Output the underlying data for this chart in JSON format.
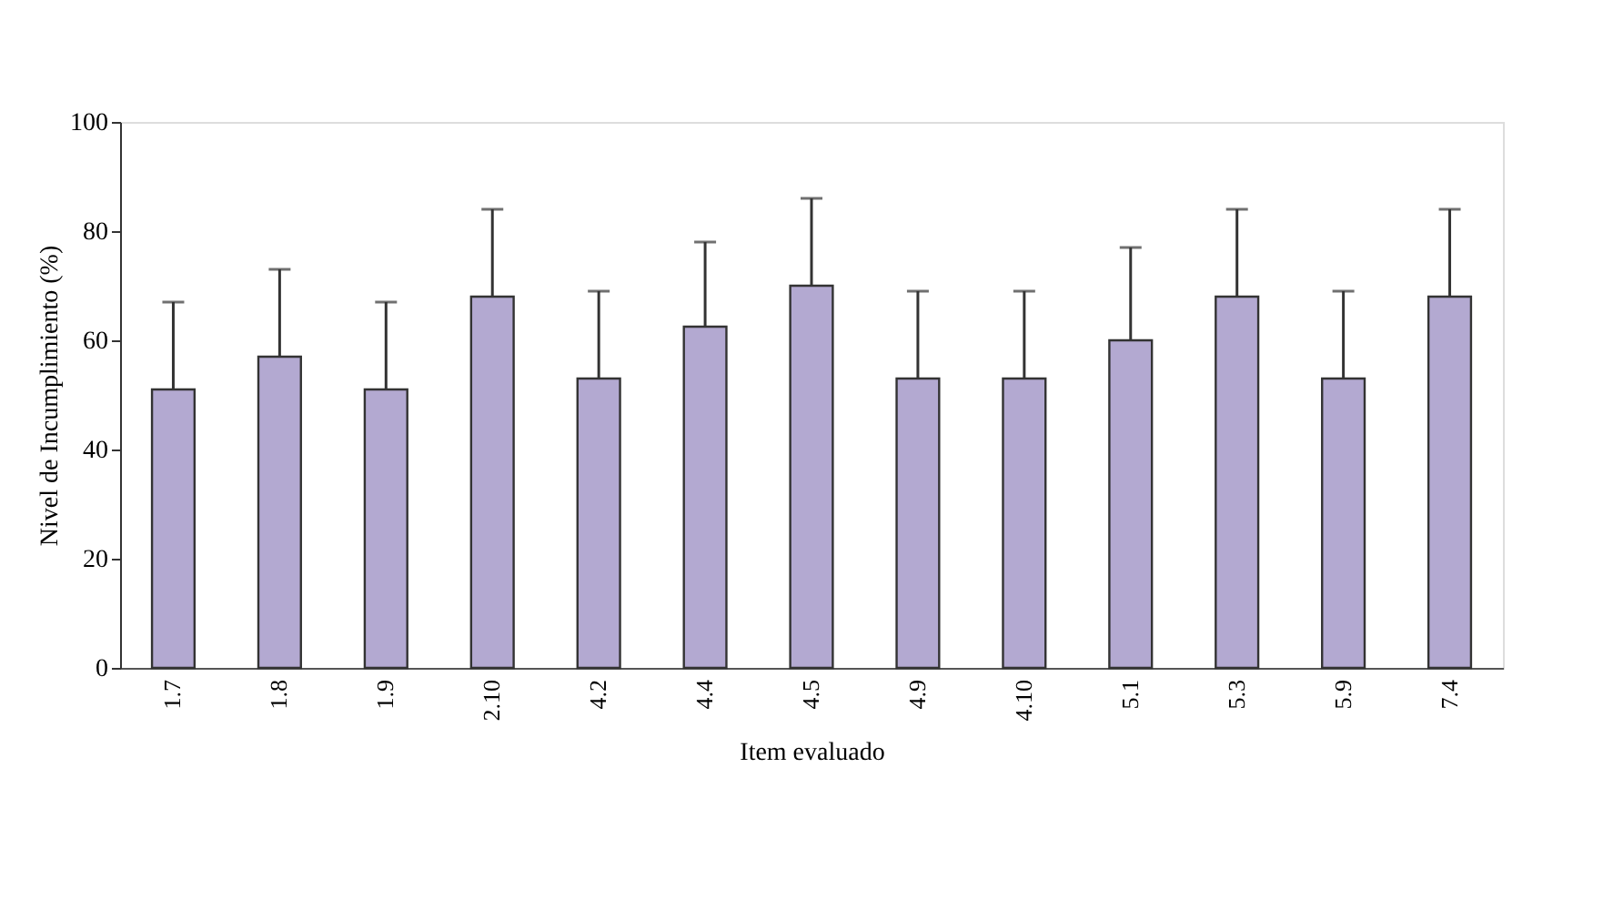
{
  "chart_data": {
    "type": "bar",
    "xlabel": "Item evaluado",
    "ylabel": "Nivel de Incumplimiento (%)",
    "categories": [
      "1.7",
      "1.8",
      "1.9",
      "2.10",
      "4.2",
      "4.4",
      "4.5",
      "4.9",
      "4.10",
      "5.1",
      "5.3",
      "5.9",
      "7.4"
    ],
    "values": [
      51,
      57,
      51,
      68,
      53,
      62.5,
      70,
      53,
      53,
      60,
      68,
      53,
      68
    ],
    "errors": [
      [
        51,
        67
      ],
      [
        57,
        73
      ],
      [
        51,
        67
      ],
      [
        68,
        84
      ],
      [
        53,
        69
      ],
      [
        62.5,
        78
      ],
      [
        70,
        86
      ],
      [
        53,
        69
      ],
      [
        53,
        69
      ],
      [
        60,
        77
      ],
      [
        68,
        84
      ],
      [
        53,
        69
      ],
      [
        68,
        84
      ]
    ],
    "color": "#b3a9d1",
    "ylim": [
      0,
      100
    ],
    "yticks": [
      0,
      20,
      40,
      60,
      80,
      100
    ],
    "grid": false
  }
}
